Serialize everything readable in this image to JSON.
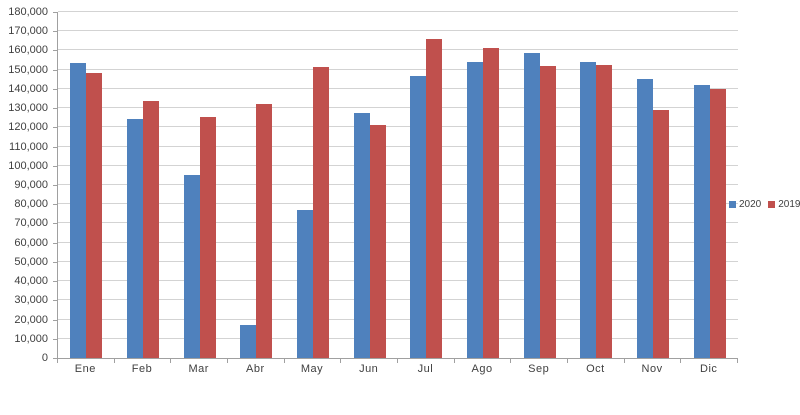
{
  "chart_data": {
    "type": "bar",
    "title": "",
    "xlabel": "",
    "ylabel": "",
    "categories": [
      "Ene",
      "Feb",
      "Mar",
      "Abr",
      "May",
      "Jun",
      "Jul",
      "Ago",
      "Sep",
      "Oct",
      "Nov",
      "Dic"
    ],
    "series": [
      {
        "name": "2020",
        "color": "#4F81BD",
        "values": [
          153500,
          124500,
          95000,
          17000,
          77000,
          127500,
          146500,
          154000,
          158500,
          154000,
          145000,
          142000
        ]
      },
      {
        "name": "2019",
        "color": "#C0504D",
        "values": [
          148500,
          133500,
          125500,
          132000,
          151500,
          121000,
          166000,
          161500,
          152000,
          152500,
          129000,
          140000
        ]
      }
    ],
    "ylim": [
      0,
      180000
    ],
    "ytick_step": 10000,
    "ytick_labels": [
      "0",
      "10,000",
      "20,000",
      "30,000",
      "40,000",
      "50,000",
      "60,000",
      "70,000",
      "80,000",
      "90,000",
      "100,000",
      "110,000",
      "120,000",
      "130,000",
      "140,000",
      "150,000",
      "160,000",
      "170,000",
      "180,000"
    ],
    "grid": "horizontal",
    "legend_position": "right"
  },
  "legend": {
    "items": [
      {
        "label": "2020",
        "color": "#4F81BD"
      },
      {
        "label": "2019",
        "color": "#C0504D"
      }
    ]
  },
  "colors": {
    "background": "#FFFFFF",
    "gridline": "#D3D3D3",
    "axis_line": "#A0A0A0",
    "text": "#404040"
  }
}
